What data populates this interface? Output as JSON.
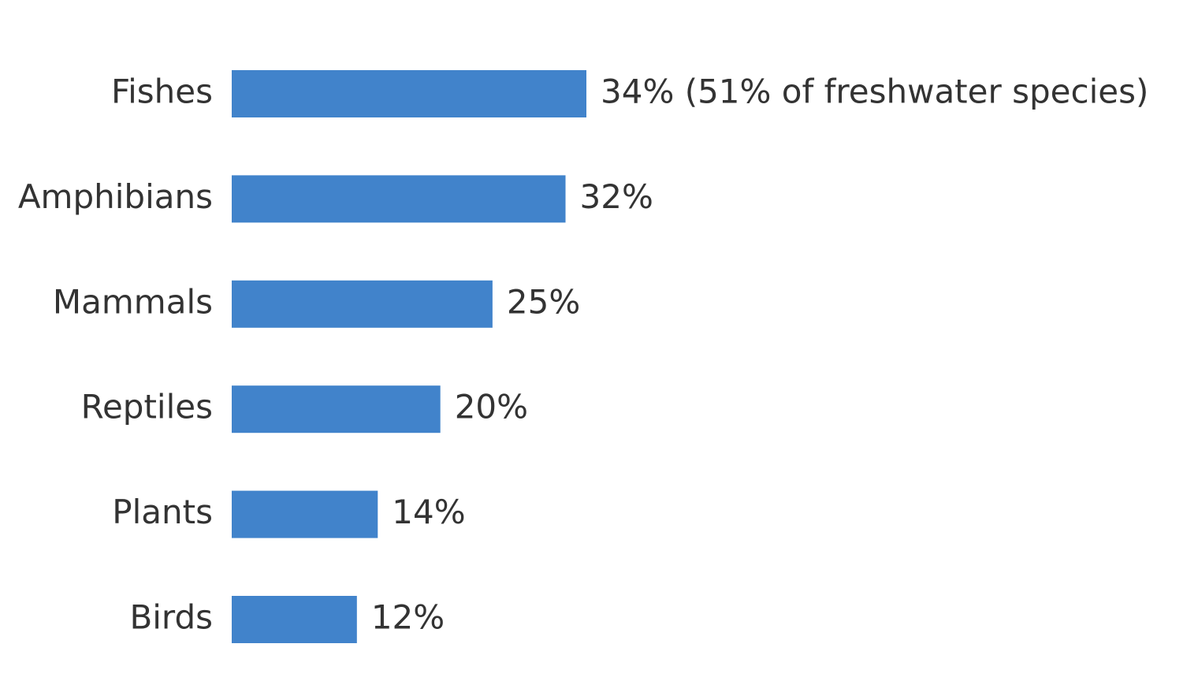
{
  "chart_data": {
    "type": "bar",
    "orientation": "horizontal",
    "categories": [
      "Fishes",
      "Amphibians",
      "Mammals",
      "Reptiles",
      "Plants",
      "Birds"
    ],
    "values": [
      34,
      32,
      25,
      20,
      14,
      12
    ],
    "value_labels": [
      "34% (51% of freshwater species)",
      "32%",
      "25%",
      "20%",
      "14%",
      "12%"
    ],
    "color": "#4183cb"
  }
}
